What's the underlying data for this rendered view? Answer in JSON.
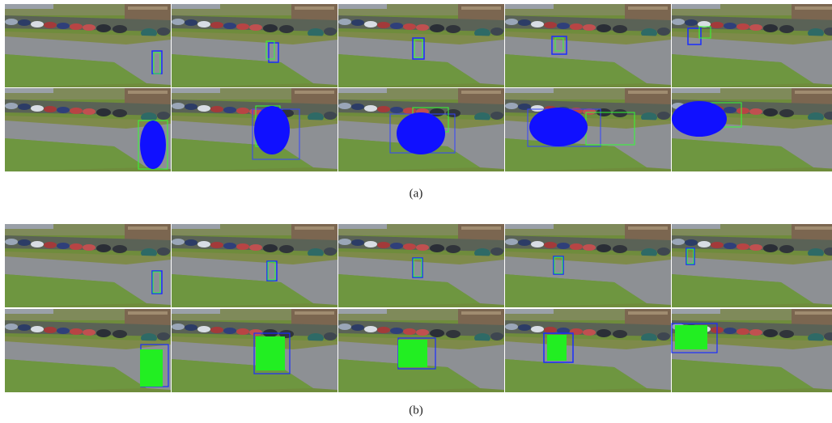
{
  "figure": {
    "subfigures": [
      {
        "label": "(a)"
      },
      {
        "label": "(b)"
      }
    ]
  }
}
